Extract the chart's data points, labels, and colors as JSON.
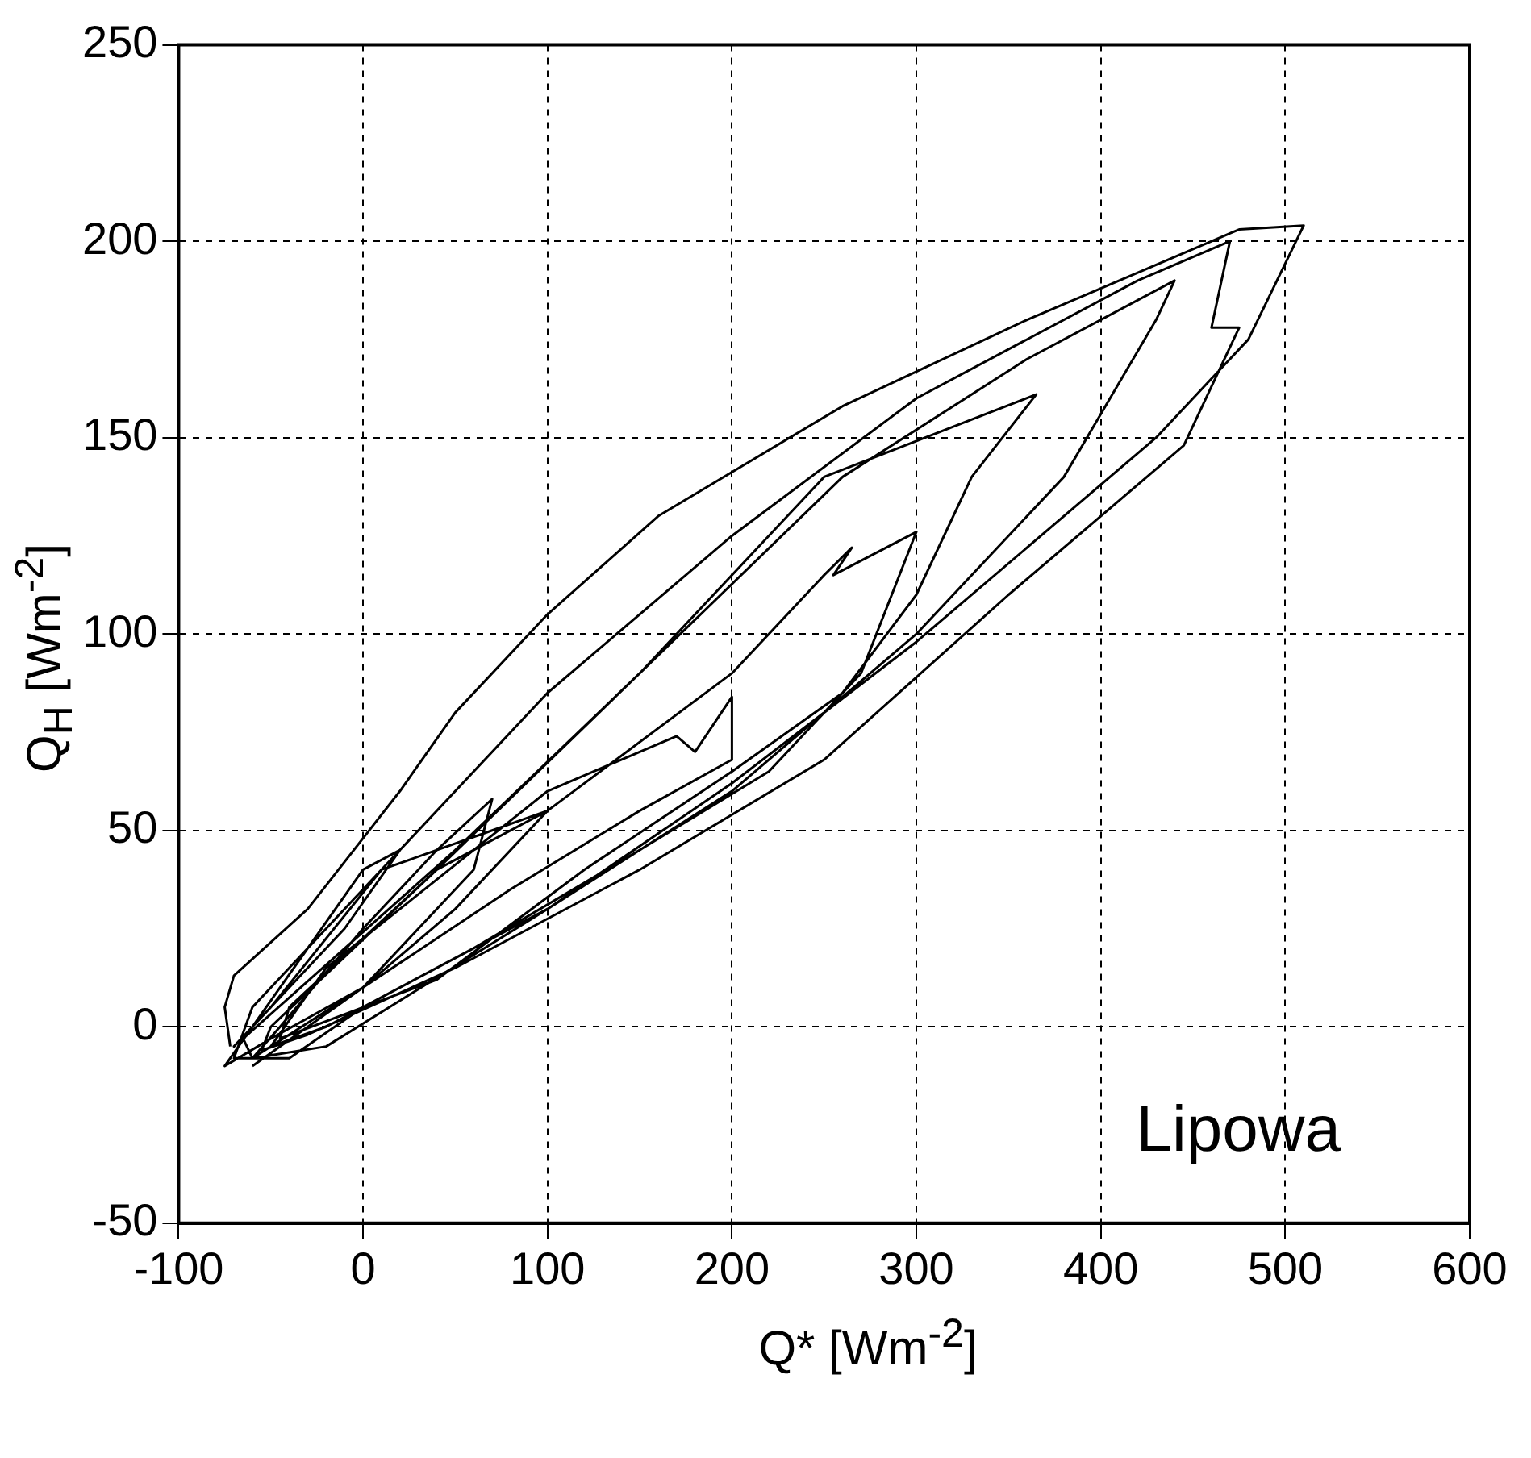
{
  "chart_data": {
    "type": "line",
    "xlabel": "Q* [Wm$^{-2}$]",
    "ylabel": "Q$_{H}$ [Wm$^{-2}$]",
    "annotations": [
      "Lipowa"
    ],
    "xlim": [
      -100,
      600
    ],
    "xticks": [
      -100,
      0,
      100,
      200,
      300,
      400,
      500,
      600
    ],
    "ylim": [
      -50,
      250
    ],
    "yticks": [
      -50,
      0,
      50,
      100,
      150,
      200,
      250
    ],
    "grid": true,
    "legend": false,
    "marker": "none",
    "line_style": "solid",
    "series": [
      {
        "color": "#000000",
        "x": [
          -72,
          -75,
          -70,
          -30,
          20,
          50,
          100,
          160,
          260,
          360,
          475,
          510,
          480,
          430,
          300,
          200,
          100,
          0,
          -40,
          -70,
          -60,
          -40,
          20,
          100,
          200,
          300,
          420,
          470,
          460,
          475,
          445,
          350,
          250,
          150,
          50,
          -30,
          -55,
          -50,
          40,
          150,
          260,
          360,
          440,
          430,
          380,
          300,
          200,
          100,
          -20,
          -60,
          -65,
          50,
          150,
          250,
          365,
          330,
          300,
          260,
          200,
          120,
          40,
          -45,
          -40,
          40,
          100,
          200,
          250,
          265,
          255,
          300,
          270,
          220,
          150,
          60,
          -20,
          -50,
          -20,
          20,
          100,
          170,
          180,
          200,
          200,
          150,
          80,
          0,
          -60,
          -45,
          0,
          40,
          70,
          60,
          30,
          0,
          -50,
          -75,
          -30,
          0,
          20,
          -10,
          -40,
          -70,
          -50,
          10,
          70,
          100,
          50,
          0,
          -60
        ],
        "values": [
          -5,
          5,
          13,
          30,
          60,
          80,
          105,
          130,
          158,
          180,
          203,
          204,
          175,
          150,
          98,
          62,
          30,
          5,
          -8,
          -8,
          5,
          15,
          45,
          85,
          125,
          160,
          190,
          200,
          178,
          178,
          148,
          110,
          68,
          40,
          15,
          -2,
          -6,
          0,
          40,
          90,
          140,
          170,
          190,
          180,
          140,
          100,
          60,
          30,
          -5,
          -8,
          -3,
          45,
          90,
          140,
          161,
          140,
          110,
          85,
          65,
          40,
          12,
          -3,
          5,
          40,
          55,
          90,
          115,
          122,
          115,
          126,
          90,
          65,
          45,
          20,
          0,
          -5,
          15,
          30,
          60,
          74,
          70,
          84,
          68,
          55,
          35,
          10,
          -8,
          0,
          25,
          45,
          58,
          40,
          25,
          10,
          -3,
          -10,
          20,
          40,
          45,
          25,
          10,
          -5,
          5,
          40,
          50,
          55,
          30,
          10,
          -10
        ]
      }
    ]
  }
}
